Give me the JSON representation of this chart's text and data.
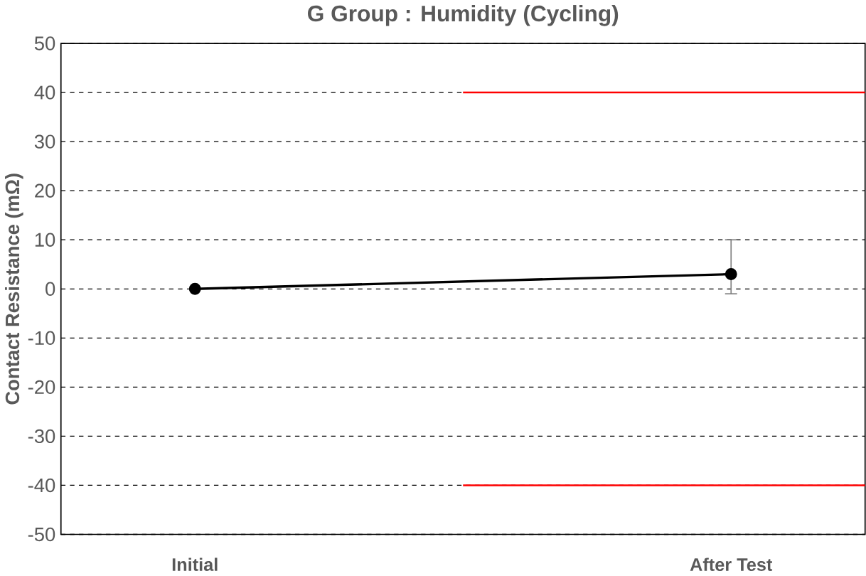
{
  "chart_data": {
    "type": "line",
    "title": "G Group : Humidity (Cycling)",
    "ylabel": "Contact Resistance (mΩ)",
    "categories": [
      "Initial",
      "After Test"
    ],
    "series": [
      {
        "color": "#000000",
        "values": [
          0,
          3
        ],
        "errors": [
          null,
          [
            -1,
            10
          ]
        ]
      }
    ],
    "ylim": [
      -50,
      50
    ],
    "yticks": [
      -50,
      -40,
      -30,
      -20,
      -10,
      0,
      10,
      20,
      30,
      40,
      50
    ],
    "grid": "y",
    "marker": "circle",
    "line_style": "solid",
    "ref_lines": [
      {
        "axis": "y",
        "value": 40,
        "color": "#ff0000"
      },
      {
        "axis": "y",
        "value": -40,
        "color": "#ff0000"
      }
    ]
  }
}
